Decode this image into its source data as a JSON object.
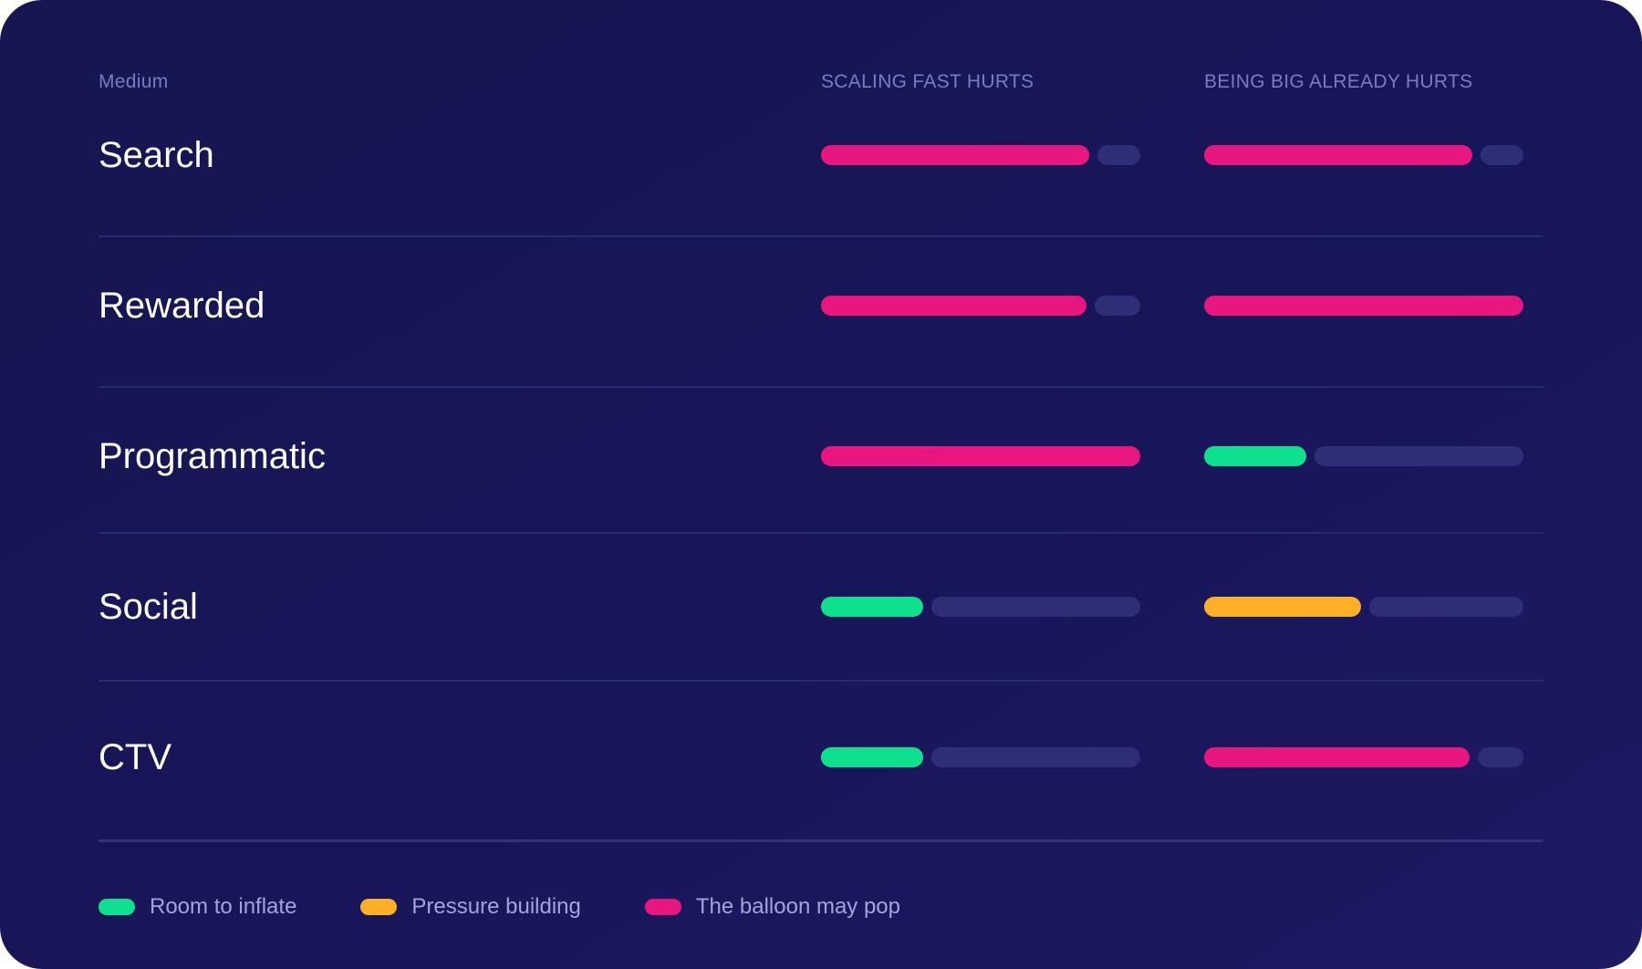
{
  "chart_data": {
    "type": "table",
    "columns": {
      "medium": "Medium",
      "col1": "SCALING FAST HURTS",
      "col2": "BEING BIG ALREADY HURTS"
    },
    "rows": [
      {
        "label": "Search",
        "col1": {
          "value": 0.84,
          "status": "pop"
        },
        "col2": {
          "value": 0.84,
          "status": "pop"
        }
      },
      {
        "label": "Rewarded",
        "col1": {
          "value": 0.83,
          "status": "pop"
        },
        "col2": {
          "value": 1.0,
          "status": "pop"
        }
      },
      {
        "label": "Programmatic",
        "col1": {
          "value": 1.0,
          "status": "pop"
        },
        "col2": {
          "value": 0.32,
          "status": "room"
        }
      },
      {
        "label": "Social",
        "col1": {
          "value": 0.32,
          "status": "room"
        },
        "col2": {
          "value": 0.49,
          "status": "pressure"
        }
      },
      {
        "label": "CTV",
        "col1": {
          "value": 0.32,
          "status": "room"
        },
        "col2": {
          "value": 0.83,
          "status": "pop"
        }
      }
    ],
    "legend": [
      {
        "key": "room",
        "label": "Room to inflate"
      },
      {
        "key": "pressure",
        "label": "Pressure building"
      },
      {
        "key": "pop",
        "label": "The balloon may pop"
      }
    ],
    "colors": {
      "room": "#0ee08d",
      "pressure": "#fbb026",
      "pop": "#e8177f",
      "track": "#2e2d78"
    },
    "value_range": [
      0,
      1
    ]
  }
}
